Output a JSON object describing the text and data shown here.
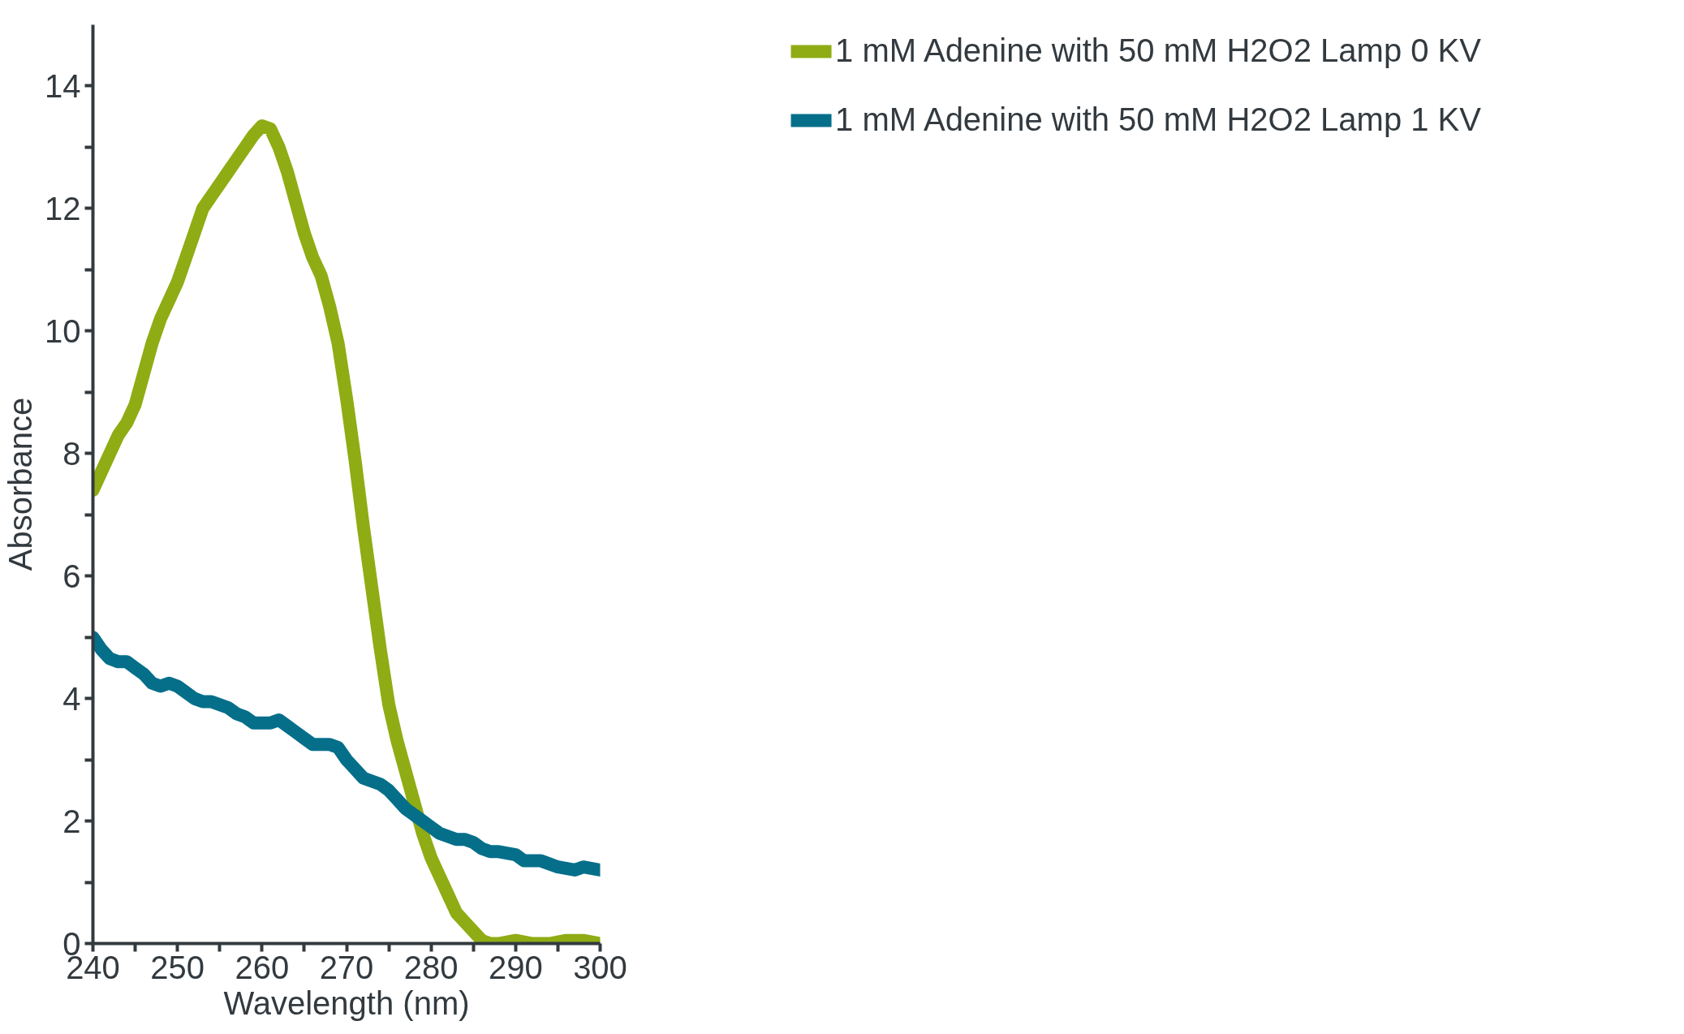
{
  "chart_data": {
    "type": "line",
    "xlabel": "Wavelength (nm)",
    "ylabel": "Absorbance",
    "xlim": [
      240,
      300
    ],
    "ylim": [
      0,
      15
    ],
    "xticks": [
      240,
      {
        "value": 245,
        "label": null
      },
      250,
      {
        "value": 255,
        "label": null
      },
      260,
      {
        "value": 265,
        "label": null
      },
      270,
      {
        "value": 275,
        "label": null
      },
      280,
      {
        "value": 285,
        "label": null
      },
      290,
      {
        "value": 295,
        "label": null
      },
      300
    ],
    "yticks": [
      0,
      {
        "value": 1,
        "label": null
      },
      2,
      {
        "value": 3,
        "label": null
      },
      4,
      {
        "value": 5,
        "label": null
      },
      6,
      {
        "value": 7,
        "label": null
      },
      8,
      {
        "value": 9,
        "label": null
      },
      10,
      {
        "value": 11,
        "label": null
      },
      12,
      {
        "value": 13,
        "label": null
      },
      14
    ],
    "grid": false,
    "legend": "top right",
    "marker": "none",
    "line_style": "solid",
    "series": [
      {
        "name": "1 mM Adenine with 50 mM H2O2 Lamp 0 KV",
        "color": "#8fac14",
        "x": [
          240,
          241,
          242,
          243,
          244,
          245,
          246,
          247,
          248,
          249,
          250,
          251,
          252,
          253,
          254,
          255,
          256,
          257,
          258,
          259,
          260,
          261,
          262,
          263,
          264,
          265,
          266,
          267,
          268,
          269,
          270,
          271,
          272,
          273,
          274,
          275,
          276,
          277,
          278,
          279,
          280,
          281,
          282,
          283,
          284,
          285,
          286,
          287,
          288,
          290,
          292,
          294,
          296,
          298,
          300
        ],
        "values": [
          7.4,
          7.7,
          8.0,
          8.3,
          8.5,
          8.8,
          9.3,
          9.8,
          10.2,
          10.5,
          10.8,
          11.2,
          11.6,
          12.0,
          12.2,
          12.4,
          12.6,
          12.8,
          13.0,
          13.2,
          13.35,
          13.3,
          13.0,
          12.6,
          12.1,
          11.6,
          11.2,
          10.9,
          10.4,
          9.8,
          8.9,
          7.9,
          6.8,
          5.8,
          4.8,
          3.9,
          3.3,
          2.8,
          2.3,
          1.8,
          1.4,
          1.1,
          0.8,
          0.5,
          0.35,
          0.2,
          0.05,
          0,
          0,
          0.05,
          0,
          0,
          0.05,
          0.05,
          0
        ]
      },
      {
        "name": "1 mM Adenine with 50 mM H2O2 Lamp 1 KV",
        "color": "#056f8a",
        "x": [
          240,
          241,
          242,
          243,
          244,
          245,
          246,
          247,
          248,
          249,
          250,
          251,
          252,
          253,
          254,
          255,
          256,
          257,
          258,
          259,
          260,
          261,
          262,
          263,
          264,
          265,
          266,
          267,
          268,
          269,
          270,
          271,
          272,
          273,
          274,
          275,
          276,
          277,
          278,
          279,
          280,
          281,
          282,
          283,
          284,
          285,
          286,
          287,
          288,
          290,
          291,
          293,
          295,
          297,
          298,
          300
        ],
        "values": [
          5.0,
          4.8,
          4.65,
          4.6,
          4.6,
          4.5,
          4.4,
          4.25,
          4.2,
          4.25,
          4.2,
          4.1,
          4.0,
          3.95,
          3.95,
          3.9,
          3.85,
          3.75,
          3.7,
          3.6,
          3.6,
          3.6,
          3.65,
          3.55,
          3.45,
          3.35,
          3.25,
          3.25,
          3.25,
          3.2,
          3.0,
          2.85,
          2.7,
          2.65,
          2.6,
          2.5,
          2.35,
          2.2,
          2.1,
          2.0,
          1.9,
          1.8,
          1.75,
          1.7,
          1.7,
          1.65,
          1.55,
          1.5,
          1.5,
          1.45,
          1.35,
          1.35,
          1.25,
          1.2,
          1.25,
          1.2
        ]
      }
    ]
  }
}
